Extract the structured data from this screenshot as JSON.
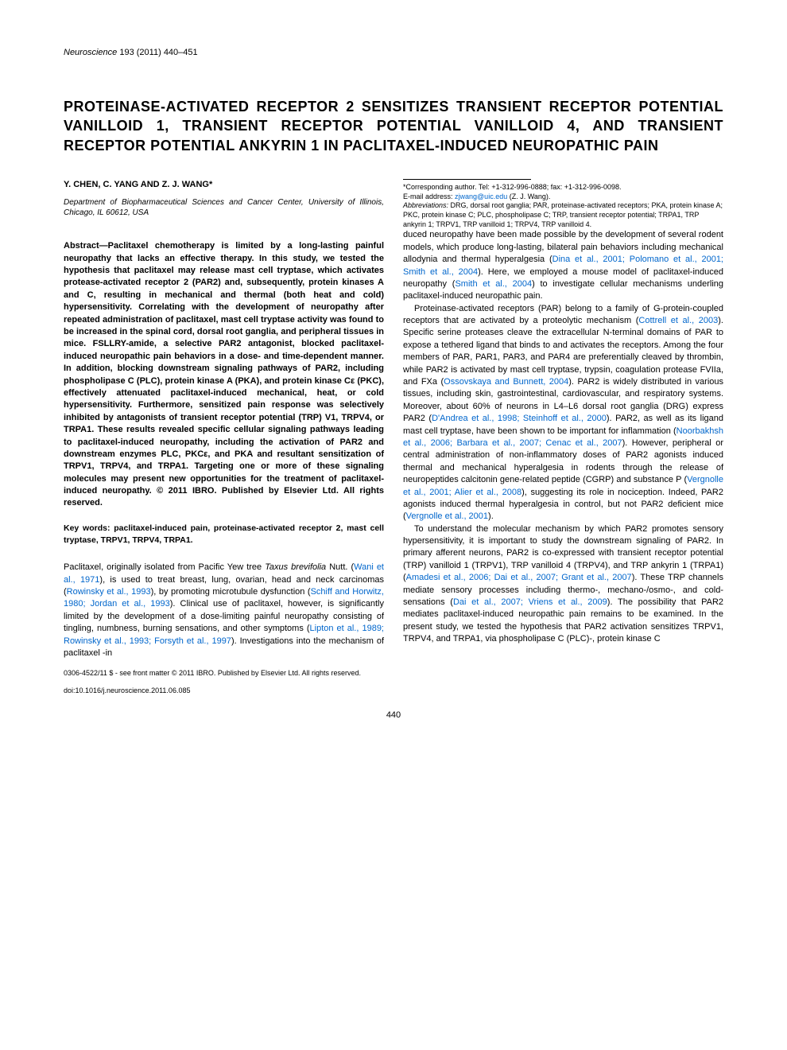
{
  "journal": {
    "name": "Neuroscience",
    "volume": "193",
    "year": "2011",
    "pages": "440–451"
  },
  "title": "PROTEINASE-ACTIVATED RECEPTOR 2 SENSITIZES TRANSIENT RECEPTOR POTENTIAL VANILLOID 1, TRANSIENT RECEPTOR POTENTIAL VANILLOID 4, AND TRANSIENT RECEPTOR POTENTIAL ANKYRIN 1 IN PACLITAXEL-INDUCED NEUROPATHIC PAIN",
  "authors": "Y. CHEN, C. YANG AND Z. J. WANG*",
  "affiliation": "Department of Biopharmaceutical Sciences and Cancer Center, University of Illinois, Chicago, IL 60612, USA",
  "abstract": "Abstract—Paclitaxel chemotherapy is limited by a long-lasting painful neuropathy that lacks an effective therapy. In this study, we tested the hypothesis that paclitaxel may release mast cell tryptase, which activates protease-activated receptor 2 (PAR2) and, subsequently, protein kinases A and C, resulting in mechanical and thermal (both heat and cold) hypersensitivity. Correlating with the development of neuropathy after repeated administration of paclitaxel, mast cell tryptase activity was found to be increased in the spinal cord, dorsal root ganglia, and peripheral tissues in mice. FSLLRY-amide, a selective PAR2 antagonist, blocked paclitaxel-induced neuropathic pain behaviors in a dose- and time-dependent manner. In addition, blocking downstream signaling pathways of PAR2, including phospholipase C (PLC), protein kinase A (PKA), and protein kinase Cε (PKC), effectively attenuated paclitaxel-induced mechanical, heat, or cold hypersensitivity. Furthermore, sensitized pain response was selectively inhibited by antagonists of transient receptor potential (TRP) V1, TRPV4, or TRPA1. These results revealed specific cellular signaling pathways leading to paclitaxel-induced neuropathy, including the activation of PAR2 and downstream enzymes PLC, PKCε, and PKA and resultant sensitization of TRPV1, TRPV4, and TRPA1. Targeting one or more of these signaling molecules may present new opportunities for the treatment of paclitaxel-induced neuropathy. © 2011 IBRO. Published by Elsevier Ltd. All rights reserved.",
  "keywords": "Key words: paclitaxel-induced pain, proteinase-activated receptor 2, mast cell tryptase, TRPV1, TRPV4, TRPA1.",
  "para1_a": "Paclitaxel, originally isolated from Pacific Yew tree ",
  "para1_species": "Taxus brevifolia",
  "para1_b": " Nutt. (",
  "para1_link1": "Wani et al., 1971",
  "para1_c": "), is used to treat breast, lung, ovarian, head and neck carcinomas (",
  "para1_link2": "Rowinsky et al., 1993",
  "para1_d": "), by promoting microtubule dysfunction (",
  "para1_link3": "Schiff and Horwitz, 1980; Jordan et al., 1993",
  "para1_e": "). Clinical use of paclitaxel, however, is significantly limited by the development of a dose-limiting painful neuropathy consisting of tingling, numbness, burning sensations, and other symptoms (",
  "para1_link4": "Lipton et al., 1989; Rowinsky et al., 1993; Forsyth et al., 1997",
  "para1_f": "). Investigations into the mechanism of paclitaxel -in",
  "para1cont_a": "duced neuropathy have been made possible by the development of several rodent models, which produce long-lasting, bilateral pain behaviors including mechanical allodynia and thermal hyperalgesia (",
  "para1cont_link1": "Dina et al., 2001; Polomano et al., 2001; Smith et al., 2004",
  "para1cont_b": "). Here, we employed a mouse model of paclitaxel-induced neuropathy (",
  "para1cont_link2": "Smith et al., 2004",
  "para1cont_c": ") to investigate cellular mechanisms underling paclitaxel-induced neuropathic pain.",
  "para2_a": "Proteinase-activated receptors (PAR) belong to a family of G-protein-coupled receptors that are activated by a proteolytic mechanism (",
  "para2_link1": "Cottrell et al., 2003",
  "para2_b": "). Specific serine proteases cleave the extracellular N-terminal domains of PAR to expose a tethered ligand that binds to and activates the receptors. Among the four members of PAR, PAR1, PAR3, and PAR4 are preferentially cleaved by thrombin, while PAR2 is activated by mast cell tryptase, trypsin, coagulation protease FVIIa, and FXa (",
  "para2_link2": "Ossovskaya and Bunnett, 2004",
  "para2_c": "). PAR2 is widely distributed in various tissues, including skin, gastrointestinal, cardiovascular, and respiratory systems. Moreover, about 60% of neurons in L4–L6 dorsal root ganglia (DRG) express PAR2 (",
  "para2_link3": "D'Andrea et al., 1998; Steinhoff et al., 2000",
  "para2_d": "). PAR2, as well as its ligand mast cell tryptase, have been shown to be important for inflammation (",
  "para2_link4": "Noorbakhsh et al., 2006; Barbara et al., 2007; Cenac et al., 2007",
  "para2_e": "). However, peripheral or central administration of non-inflammatory doses of PAR2 agonists induced thermal and mechanical hyperalgesia in rodents through the release of neuropeptides calcitonin gene-related peptide (CGRP) and substance P (",
  "para2_link5": "Vergnolle et al., 2001; Alier et al., 2008",
  "para2_f": "), suggesting its role in nociception. Indeed, PAR2 agonists induced thermal hyperalgesia in control, but not PAR2 deficient mice (",
  "para2_link6": "Vergnolle et al., 2001",
  "para2_g": ").",
  "para3_a": "To understand the molecular mechanism by which PAR2 promotes sensory hypersensitivity, it is important to study the downstream signaling of PAR2. In primary afferent neurons, PAR2 is co-expressed with transient receptor potential (TRP) vanilloid 1 (TRPV1), TRP vanilloid 4 (TRPV4), and TRP ankyrin 1 (TRPA1) (",
  "para3_link1": "Amadesi et al., 2006; Dai et al., 2007; Grant et al., 2007",
  "para3_b": "). These TRP channels mediate sensory processes including thermo-, mechano-/osmo-, and cold-sensations (",
  "para3_link2": "Dai et al., 2007; Vriens et al., 2009",
  "para3_c": "). The possibility that PAR2 mediates paclitaxel-induced neuropathic pain remains to be examined. In the present study, we tested the hypothesis that PAR2 activation sensitizes TRPV1, TRPV4, and TRPA1, via phospholipase C (PLC)-, protein kinase C",
  "footnote_corresponding": "*Corresponding author. Tel: +1-312-996-0888; fax: +1-312-996-0098.",
  "footnote_email_label": "E-mail address: ",
  "footnote_email": "zjwang@uic.edu",
  "footnote_email_name": " (Z. J. Wang).",
  "footnote_abbrev_label": "Abbreviations:",
  "footnote_abbrev": " DRG, dorsal root ganglia; PAR, proteinase-activated receptors; PKA, protein kinase A; PKC, protein kinase C; PLC, phospholipase C; TRP, transient receptor potential; TRPA1, TRP ankyrin 1; TRPV1, TRP vanilloid 1; TRPV4, TRP vanilloid 4.",
  "footer1": "0306-4522/11 $ - see front matter © 2011 IBRO. Published by Elsevier Ltd. All rights reserved.",
  "footer2": "doi:10.1016/j.neuroscience.2011.06.085",
  "pagenum": "440",
  "colors": {
    "text": "#000000",
    "link": "#0066cc",
    "background": "#ffffff"
  }
}
